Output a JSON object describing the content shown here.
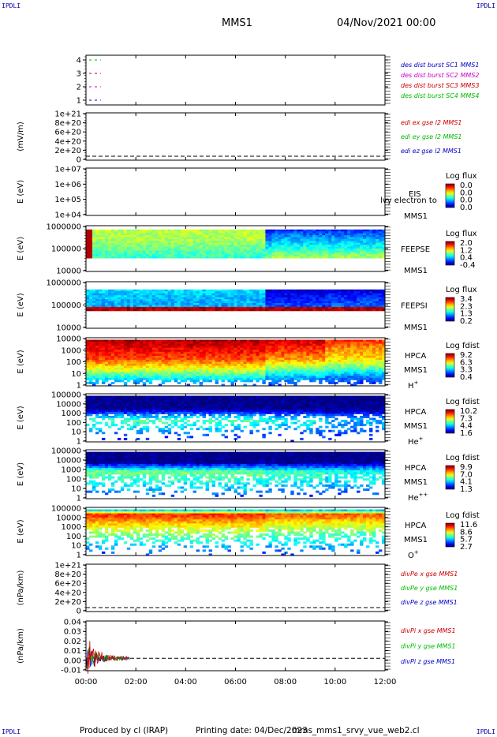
{
  "corners": {
    "top_left": "IPDLI",
    "top_right": "IPDLI",
    "bottom_left": "IPDLI",
    "bottom_right": "IPDLI"
  },
  "header": {
    "mission": "MMS1",
    "date": "04/Nov/2021 00:00"
  },
  "footer": {
    "produced": "Produced by cl (IRAP)",
    "printing": "Printing date: 04/Dec/2023",
    "script": "mms_mms1_srvy_vue_web2.cl"
  },
  "chart_data": {
    "type": "multi-panel",
    "x_range": [
      "00:00",
      "12:00"
    ],
    "x_ticks": [
      "00:00",
      "02:00",
      "04:00",
      "06:00",
      "08:00",
      "10:00",
      "12:00"
    ],
    "panels": [
      {
        "id": "des-burst",
        "kind": "flags",
        "ylabel": "",
        "yticks": [
          "4",
          "3",
          "2",
          "1"
        ],
        "legend": [
          {
            "text": "des dist burst SC1 MMS1",
            "color": "#0000cc"
          },
          {
            "text": "des dist burst SC2 MMS2",
            "color": "#cc00cc"
          },
          {
            "text": "des dist burst SC3 MMS3",
            "color": "#cc0000"
          },
          {
            "text": "des dist burst SC4 MMS4",
            "color": "#00bb00"
          }
        ],
        "series": [
          {
            "level": 4,
            "color": "#00bb00",
            "x": [
              "00:00",
              "00:36"
            ]
          },
          {
            "level": 3,
            "color": "#cc0000",
            "x": [
              "00:00",
              "00:36"
            ]
          },
          {
            "level": 2,
            "color": "#cc00cc",
            "x": [
              "00:00",
              "00:36"
            ]
          },
          {
            "level": 1,
            "color": "#0000cc",
            "x": [
              "00:00",
              "00:36"
            ]
          }
        ]
      },
      {
        "id": "edi-e",
        "kind": "line",
        "ylabel": "(mV/m)",
        "yticks": [
          "1e+21",
          "8e+20",
          "6e+20",
          "4e+20",
          "2e+20",
          "0"
        ],
        "legend": [
          {
            "text": "edi ex gse l2 MMS1",
            "color": "#cc0000"
          },
          {
            "text": "edi ey gse l2 MMS1",
            "color": "#00bb00"
          },
          {
            "text": "edi ez gse l2 MMS1",
            "color": "#0000cc"
          }
        ]
      },
      {
        "id": "eis",
        "kind": "spectrogram-empty",
        "ylabel": "E (eV)",
        "yticks": [
          "1e+07",
          "1e+06",
          "1e+05",
          "1e+04"
        ],
        "instrument": [
          "EIS",
          "MMS1"
        ],
        "overlay": "lvy electron to",
        "colorbar": {
          "title": "Log flux",
          "labels": [
            "0.0",
            "0.0",
            "0.0",
            "0.0"
          ]
        }
      },
      {
        "id": "feeps-e",
        "kind": "spectrogram",
        "ylabel": "E (eV)",
        "yticks": [
          "1000000",
          "100000",
          "10000"
        ],
        "instrument": [
          "FEEPSE",
          "MMS1"
        ],
        "colorbar": {
          "title": "Log flux",
          "labels": [
            "2.0",
            "1.2",
            "0.4",
            "-0.4"
          ]
        }
      },
      {
        "id": "feeps-i",
        "kind": "spectrogram",
        "ylabel": "E (eV)",
        "yticks": [
          "1000000",
          "100000",
          "10000"
        ],
        "instrument": [
          "FEEPSI",
          "MMS1"
        ],
        "colorbar": {
          "title": "Log flux",
          "labels": [
            "3.4",
            "2.3",
            "1.3",
            "0.2"
          ]
        }
      },
      {
        "id": "hpca-h",
        "kind": "spectrogram",
        "ylabel": "E (eV)",
        "yticks": [
          "10000",
          "1000",
          "100",
          "10",
          "1"
        ],
        "instrument": [
          "HPCA",
          "MMS1"
        ],
        "species": "H",
        "charge": "+",
        "colorbar": {
          "title": "Log fdist",
          "labels": [
            "9.2",
            "6.3",
            "3.3",
            "0.4"
          ]
        }
      },
      {
        "id": "hpca-he",
        "kind": "spectrogram",
        "ylabel": "E (eV)",
        "yticks": [
          "100000",
          "10000",
          "1000",
          "100",
          "10",
          "1"
        ],
        "instrument": [
          "HPCA",
          "MMS1"
        ],
        "species": "He",
        "charge": "+",
        "colorbar": {
          "title": "Log fdist",
          "labels": [
            "10.2",
            "7.3",
            "4.4",
            "1.6"
          ]
        }
      },
      {
        "id": "hpca-hepp",
        "kind": "spectrogram",
        "ylabel": "E (eV)",
        "yticks": [
          "100000",
          "10000",
          "1000",
          "100",
          "10",
          "1"
        ],
        "instrument": [
          "HPCA",
          "MMS1"
        ],
        "species": "He",
        "charge": "++",
        "colorbar": {
          "title": "Log fdist",
          "labels": [
            "9.9",
            "7.0",
            "4.1",
            "1.3"
          ]
        }
      },
      {
        "id": "hpca-o",
        "kind": "spectrogram",
        "ylabel": "E (eV)",
        "yticks": [
          "100000",
          "10000",
          "1000",
          "100",
          "10",
          "1"
        ],
        "instrument": [
          "HPCA",
          "MMS1"
        ],
        "species": "O",
        "charge": "+",
        "colorbar": {
          "title": "Log fdist",
          "labels": [
            "11.6",
            "8.6",
            "5.7",
            "2.7"
          ]
        }
      },
      {
        "id": "divpe",
        "kind": "line",
        "ylabel": "(nPa/km)",
        "yticks": [
          "1e+21",
          "8e+20",
          "6e+20",
          "4e+20",
          "2e+20",
          "0"
        ],
        "legend": [
          {
            "text": "divPe x gse MMS1",
            "color": "#cc0000"
          },
          {
            "text": "divPe y gse MMS1",
            "color": "#00bb00"
          },
          {
            "text": "divPe z gse MMS1",
            "color": "#0000cc"
          }
        ]
      },
      {
        "id": "divpi",
        "kind": "line",
        "ylabel": "(nPa/km)",
        "yticks": [
          "0.04",
          "0.03",
          "0.02",
          "0.01",
          "0.00",
          "-0.01"
        ],
        "ylim": [
          -0.015,
          0.045
        ],
        "data_span": [
          "00:00",
          "01:45"
        ],
        "legend": [
          {
            "text": "divPi x gse MMS1",
            "color": "#cc0000"
          },
          {
            "text": "divPi y gse MMS1",
            "color": "#00bb00"
          },
          {
            "text": "divPi z gse MMS1",
            "color": "#0000cc"
          }
        ]
      }
    ]
  }
}
